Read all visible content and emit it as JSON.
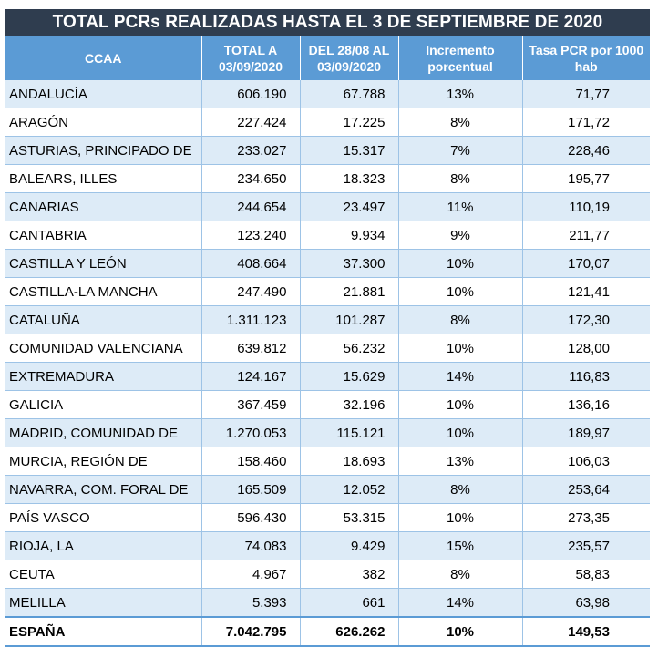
{
  "title": "TOTAL PCRs REALIZADAS HASTA EL 3 DE SEPTIEMBRE DE 2020",
  "headers": {
    "ccaa": "CCAA",
    "total_line1": "TOTAL A",
    "total_line2": "03/09/2020",
    "period_line1": "DEL 28/08 AL",
    "period_line2": "03/09/2020",
    "increment_line1": "Incremento",
    "increment_line2": "porcentual",
    "rate_line1": "Tasa PCR por 1000",
    "rate_line2": "hab"
  },
  "rows": [
    {
      "ccaa": "ANDALUCÍA",
      "total": "606.190",
      "period": "67.788",
      "increment": "13%",
      "rate": "71,77"
    },
    {
      "ccaa": "ARAGÓN",
      "total": "227.424",
      "period": "17.225",
      "increment": "8%",
      "rate": "171,72"
    },
    {
      "ccaa": "ASTURIAS, PRINCIPADO DE",
      "total": "233.027",
      "period": "15.317",
      "increment": "7%",
      "rate": "228,46"
    },
    {
      "ccaa": "BALEARS, ILLES",
      "total": "234.650",
      "period": "18.323",
      "increment": "8%",
      "rate": "195,77"
    },
    {
      "ccaa": "CANARIAS",
      "total": "244.654",
      "period": "23.497",
      "increment": "11%",
      "rate": "110,19"
    },
    {
      "ccaa": "CANTABRIA",
      "total": "123.240",
      "period": "9.934",
      "increment": "9%",
      "rate": "211,77"
    },
    {
      "ccaa": "CASTILLA Y LEÓN",
      "total": "408.664",
      "period": "37.300",
      "increment": "10%",
      "rate": "170,07"
    },
    {
      "ccaa": "CASTILLA-LA MANCHA",
      "total": "247.490",
      "period": "21.881",
      "increment": "10%",
      "rate": "121,41"
    },
    {
      "ccaa": "CATALUÑA",
      "total": "1.311.123",
      "period": "101.287",
      "increment": "8%",
      "rate": "172,30"
    },
    {
      "ccaa": "COMUNIDAD VALENCIANA",
      "total": "639.812",
      "period": "56.232",
      "increment": "10%",
      "rate": "128,00"
    },
    {
      "ccaa": "EXTREMADURA",
      "total": "124.167",
      "period": "15.629",
      "increment": "14%",
      "rate": "116,83"
    },
    {
      "ccaa": "GALICIA",
      "total": "367.459",
      "period": "32.196",
      "increment": "10%",
      "rate": "136,16"
    },
    {
      "ccaa": "MADRID, COMUNIDAD DE",
      "total": "1.270.053",
      "period": "115.121",
      "increment": "10%",
      "rate": "189,97"
    },
    {
      "ccaa": "MURCIA, REGIÓN DE",
      "total": "158.460",
      "period": "18.693",
      "increment": "13%",
      "rate": "106,03"
    },
    {
      "ccaa": "NAVARRA, COM. FORAL DE",
      "total": "165.509",
      "period": "12.052",
      "increment": "8%",
      "rate": "253,64"
    },
    {
      "ccaa": "PAÍS VASCO",
      "total": "596.430",
      "period": "53.315",
      "increment": "10%",
      "rate": "273,35"
    },
    {
      "ccaa": "RIOJA, LA",
      "total": "74.083",
      "period": "9.429",
      "increment": "15%",
      "rate": "235,57"
    },
    {
      "ccaa": "CEUTA",
      "total": "4.967",
      "period": "382",
      "increment": "8%",
      "rate": "58,83"
    },
    {
      "ccaa": "MELILLA",
      "total": "5.393",
      "period": "661",
      "increment": "14%",
      "rate": "63,98"
    }
  ],
  "total": {
    "ccaa": "ESPAÑA",
    "total": "7.042.795",
    "period": "626.262",
    "increment": "10%",
    "rate": "149,53"
  },
  "colors": {
    "title_bg": "#2f3d4f",
    "header_bg": "#5b9bd5",
    "band": "#ddebf7"
  }
}
